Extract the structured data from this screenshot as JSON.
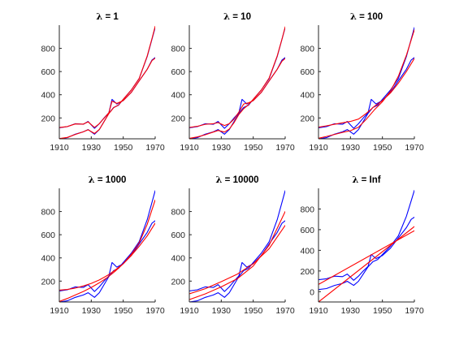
{
  "chart_data": [
    {
      "type": "line",
      "title": "λ = 1",
      "title_symbol": "λ",
      "title_rest": " = 1",
      "xlim": [
        1910,
        1970
      ],
      "ylim": [
        20,
        1000
      ],
      "xticks": [
        1910,
        1930,
        1950,
        1970
      ],
      "yticks": [
        200,
        400,
        600,
        800
      ],
      "series": [
        {
          "color": "#0000ff",
          "x": [
            1910,
            1915,
            1920,
            1925,
            1928,
            1932,
            1935,
            1938,
            1941,
            1943,
            1946,
            1950,
            1955,
            1960,
            1965,
            1968,
            1970
          ],
          "y": [
            115,
            125,
            150,
            145,
            170,
            110,
            150,
            200,
            245,
            360,
            320,
            350,
            420,
            520,
            620,
            700,
            720
          ]
        },
        {
          "color": "#0000ff",
          "x": [
            1910,
            1915,
            1920,
            1925,
            1928,
            1932,
            1935,
            1938,
            1941,
            1944,
            1947,
            1950,
            1955,
            1960,
            1965,
            1968,
            1970
          ],
          "y": [
            20,
            30,
            60,
            80,
            100,
            60,
            100,
            170,
            240,
            290,
            310,
            360,
            440,
            540,
            730,
            880,
            980
          ]
        },
        {
          "color": "#ff0000",
          "x": [
            1910,
            1915,
            1920,
            1925,
            1928,
            1932,
            1935,
            1938,
            1941,
            1943,
            1946,
            1950,
            1955,
            1960,
            1965,
            1968,
            1970
          ],
          "y": [
            117,
            126,
            148,
            147,
            166,
            118,
            150,
            198,
            245,
            345,
            325,
            350,
            420,
            520,
            620,
            695,
            715
          ]
        },
        {
          "color": "#ff0000",
          "x": [
            1910,
            1915,
            1920,
            1925,
            1928,
            1932,
            1935,
            1938,
            1941,
            1944,
            1947,
            1950,
            1955,
            1960,
            1965,
            1968,
            1970
          ],
          "y": [
            22,
            32,
            58,
            80,
            98,
            66,
            100,
            168,
            238,
            288,
            312,
            360,
            440,
            540,
            735,
            885,
            990
          ]
        }
      ]
    },
    {
      "type": "line",
      "title": "λ = 10",
      "title_symbol": "λ",
      "title_rest": " = 10",
      "xlim": [
        1910,
        1970
      ],
      "ylim": [
        20,
        1000
      ],
      "xticks": [
        1910,
        1930,
        1950,
        1970
      ],
      "yticks": [
        200,
        400,
        600,
        800
      ],
      "series": [
        {
          "color": "#0000ff",
          "x": [
            1910,
            1915,
            1920,
            1925,
            1928,
            1932,
            1935,
            1938,
            1941,
            1943,
            1946,
            1950,
            1955,
            1960,
            1965,
            1968,
            1970
          ],
          "y": [
            115,
            125,
            150,
            145,
            170,
            110,
            150,
            200,
            245,
            360,
            320,
            350,
            420,
            520,
            620,
            700,
            720
          ]
        },
        {
          "color": "#0000ff",
          "x": [
            1910,
            1915,
            1920,
            1925,
            1928,
            1932,
            1935,
            1938,
            1941,
            1944,
            1947,
            1950,
            1955,
            1960,
            1965,
            1968,
            1970
          ],
          "y": [
            20,
            30,
            60,
            80,
            100,
            60,
            100,
            170,
            240,
            290,
            310,
            360,
            440,
            540,
            730,
            880,
            980
          ]
        },
        {
          "color": "#ff0000",
          "x": [
            1910,
            1915,
            1920,
            1925,
            1928,
            1932,
            1935,
            1938,
            1941,
            1944,
            1947,
            1950,
            1955,
            1960,
            1965,
            1968,
            1970
          ],
          "y": [
            118,
            128,
            145,
            150,
            160,
            135,
            150,
            190,
            250,
            320,
            330,
            350,
            420,
            520,
            620,
            690,
            712
          ]
        },
        {
          "color": "#ff0000",
          "x": [
            1910,
            1915,
            1920,
            1925,
            1928,
            1932,
            1935,
            1938,
            1941,
            1944,
            1947,
            1950,
            1955,
            1960,
            1965,
            1968,
            1970
          ],
          "y": [
            24,
            36,
            55,
            78,
            92,
            78,
            105,
            160,
            230,
            280,
            315,
            360,
            440,
            545,
            735,
            880,
            985
          ]
        }
      ]
    },
    {
      "type": "line",
      "title": "λ = 100",
      "title_symbol": "λ",
      "title_rest": " = 100",
      "xlim": [
        1910,
        1970
      ],
      "ylim": [
        20,
        1000
      ],
      "xticks": [
        1910,
        1930,
        1950,
        1970
      ],
      "yticks": [
        200,
        400,
        600,
        800
      ],
      "series": [
        {
          "color": "#0000ff",
          "x": [
            1910,
            1915,
            1920,
            1925,
            1928,
            1932,
            1935,
            1938,
            1941,
            1943,
            1946,
            1950,
            1955,
            1960,
            1965,
            1968,
            1970
          ],
          "y": [
            115,
            125,
            150,
            145,
            170,
            110,
            150,
            200,
            245,
            360,
            320,
            350,
            420,
            520,
            620,
            700,
            720
          ]
        },
        {
          "color": "#0000ff",
          "x": [
            1910,
            1915,
            1920,
            1925,
            1928,
            1932,
            1935,
            1938,
            1941,
            1944,
            1947,
            1950,
            1955,
            1960,
            1965,
            1968,
            1970
          ],
          "y": [
            20,
            30,
            60,
            80,
            100,
            60,
            100,
            170,
            240,
            290,
            310,
            360,
            440,
            540,
            730,
            880,
            980
          ]
        },
        {
          "color": "#ff0000",
          "x": [
            1910,
            1915,
            1920,
            1925,
            1930,
            1935,
            1940,
            1945,
            1950,
            1955,
            1960,
            1965,
            1970
          ],
          "y": [
            120,
            132,
            145,
            158,
            170,
            190,
            240,
            300,
            350,
            415,
            500,
            600,
            712
          ]
        },
        {
          "color": "#ff0000",
          "x": [
            1910,
            1915,
            1920,
            1925,
            1930,
            1935,
            1940,
            1945,
            1950,
            1955,
            1960,
            1965,
            1970
          ],
          "y": [
            25,
            40,
            58,
            75,
            90,
            120,
            190,
            270,
            340,
            430,
            560,
            740,
            960
          ]
        }
      ]
    },
    {
      "type": "line",
      "title": "λ = 1000",
      "title_symbol": "λ",
      "title_rest": " = 1000",
      "xlim": [
        1910,
        1970
      ],
      "ylim": [
        20,
        1000
      ],
      "xticks": [
        1910,
        1930,
        1950,
        1970
      ],
      "yticks": [
        200,
        400,
        600,
        800
      ],
      "series": [
        {
          "color": "#0000ff",
          "x": [
            1910,
            1915,
            1920,
            1925,
            1928,
            1932,
            1935,
            1938,
            1941,
            1943,
            1946,
            1950,
            1955,
            1960,
            1965,
            1968,
            1970
          ],
          "y": [
            115,
            125,
            150,
            145,
            170,
            110,
            150,
            200,
            245,
            360,
            320,
            350,
            420,
            520,
            620,
            700,
            720
          ]
        },
        {
          "color": "#0000ff",
          "x": [
            1910,
            1915,
            1920,
            1925,
            1928,
            1932,
            1935,
            1938,
            1941,
            1944,
            1947,
            1950,
            1955,
            1960,
            1965,
            1968,
            1970
          ],
          "y": [
            20,
            30,
            60,
            80,
            100,
            60,
            100,
            170,
            240,
            290,
            310,
            360,
            440,
            540,
            730,
            880,
            980
          ]
        },
        {
          "color": "#ff0000",
          "x": [
            1910,
            1915,
            1920,
            1925,
            1930,
            1935,
            1940,
            1945,
            1950,
            1955,
            1960,
            1965,
            1970
          ],
          "y": [
            122,
            128,
            140,
            158,
            180,
            210,
            248,
            295,
            350,
            420,
            500,
            590,
            700
          ]
        },
        {
          "color": "#ff0000",
          "x": [
            1910,
            1915,
            1920,
            1925,
            1930,
            1935,
            1940,
            1945,
            1950,
            1955,
            1960,
            1965,
            1970
          ],
          "y": [
            25,
            50,
            80,
            110,
            145,
            185,
            230,
            285,
            350,
            430,
            530,
            690,
            900
          ]
        }
      ]
    },
    {
      "type": "line",
      "title": "λ = 10000",
      "title_symbol": "λ",
      "title_rest": " = 10000",
      "xlim": [
        1910,
        1970
      ],
      "ylim": [
        20,
        1000
      ],
      "xticks": [
        1910,
        1930,
        1950,
        1970
      ],
      "yticks": [
        200,
        400,
        600,
        800
      ],
      "series": [
        {
          "color": "#0000ff",
          "x": [
            1910,
            1915,
            1920,
            1925,
            1928,
            1932,
            1935,
            1938,
            1941,
            1943,
            1946,
            1950,
            1955,
            1960,
            1965,
            1968,
            1970
          ],
          "y": [
            115,
            125,
            150,
            145,
            170,
            110,
            150,
            200,
            245,
            360,
            320,
            350,
            420,
            520,
            620,
            700,
            720
          ]
        },
        {
          "color": "#0000ff",
          "x": [
            1910,
            1915,
            1920,
            1925,
            1928,
            1932,
            1935,
            1938,
            1941,
            1944,
            1947,
            1950,
            1955,
            1960,
            1965,
            1968,
            1970
          ],
          "y": [
            20,
            30,
            60,
            80,
            100,
            60,
            100,
            170,
            240,
            290,
            310,
            360,
            440,
            540,
            730,
            880,
            980
          ]
        },
        {
          "color": "#ff0000",
          "x": [
            1910,
            1920,
            1930,
            1940,
            1950,
            1960,
            1970
          ],
          "y": [
            90,
            135,
            195,
            260,
            350,
            480,
            680
          ]
        },
        {
          "color": "#ff0000",
          "x": [
            1910,
            1920,
            1930,
            1940,
            1950,
            1960,
            1970
          ],
          "y": [
            40,
            90,
            150,
            220,
            330,
            510,
            800
          ]
        }
      ]
    },
    {
      "type": "line",
      "title": "λ = Inf",
      "title_symbol": "λ",
      "title_rest": " = Inf",
      "xlim": [
        1910,
        1970
      ],
      "ylim": [
        -100,
        1000
      ],
      "xticks": [
        1910,
        1930,
        1950,
        1970
      ],
      "yticks": [
        0,
        200,
        400,
        600,
        800
      ],
      "series": [
        {
          "color": "#0000ff",
          "x": [
            1910,
            1915,
            1920,
            1925,
            1928,
            1932,
            1935,
            1938,
            1941,
            1943,
            1946,
            1950,
            1955,
            1960,
            1965,
            1968,
            1970
          ],
          "y": [
            115,
            125,
            150,
            145,
            170,
            110,
            150,
            200,
            245,
            360,
            320,
            350,
            420,
            520,
            620,
            700,
            720
          ]
        },
        {
          "color": "#0000ff",
          "x": [
            1910,
            1915,
            1920,
            1925,
            1928,
            1932,
            1935,
            1938,
            1941,
            1944,
            1947,
            1950,
            1955,
            1960,
            1965,
            1968,
            1970
          ],
          "y": [
            20,
            30,
            60,
            80,
            100,
            60,
            100,
            170,
            240,
            290,
            310,
            360,
            440,
            540,
            730,
            880,
            980
          ]
        },
        {
          "color": "#ff0000",
          "x": [
            1910,
            1970
          ],
          "y": [
            70,
            590
          ]
        },
        {
          "color": "#ff0000",
          "x": [
            1910,
            1970
          ],
          "y": [
            -100,
            630
          ]
        }
      ]
    }
  ]
}
